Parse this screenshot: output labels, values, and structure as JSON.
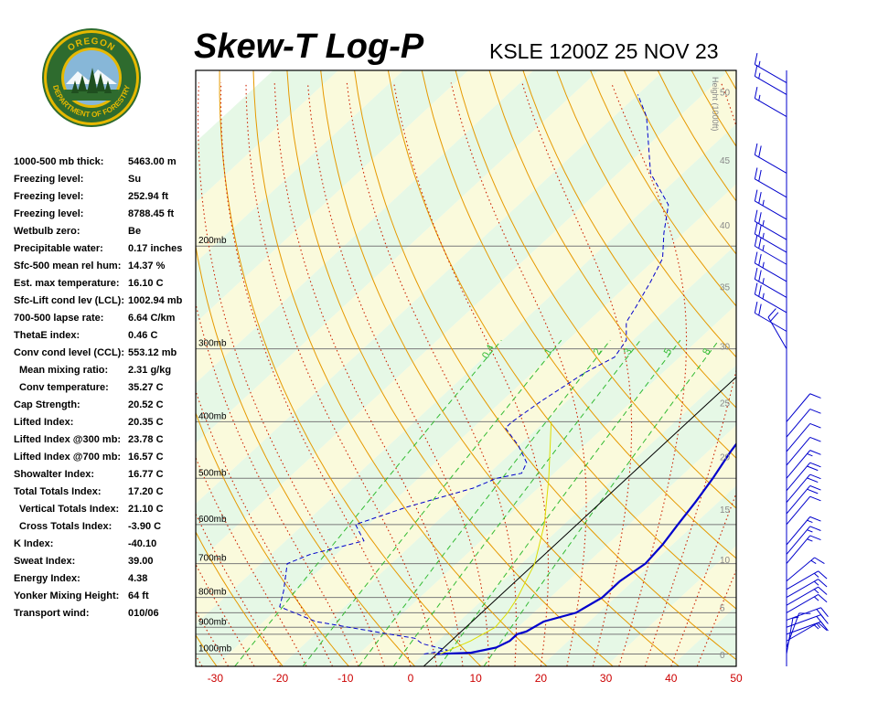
{
  "header": {
    "title": "Skew-T Log-P",
    "station": "KSLE 1200Z 25 NOV 23"
  },
  "logo": {
    "top_text": "OREGON",
    "bottom_text": "DEPARTMENT OF FORESTRY",
    "colors": {
      "ring": "#2e6b2e",
      "gold": "#e6b800",
      "sky": "#87b7d8"
    }
  },
  "stats": [
    {
      "label": "1000-500 mb thick:",
      "value": "5463.00 m"
    },
    {
      "label": "Freezing level:",
      "value": "Su"
    },
    {
      "label": "Freezing level:",
      "value": "252.94 ft"
    },
    {
      "label": "Freezing level:",
      "value": "8788.45 ft"
    },
    {
      "label": "Wetbulb zero:",
      "value": "Be"
    },
    {
      "label": "Precipitable water:",
      "value": "0.17 inches"
    },
    {
      "label": "Sfc-500 mean rel hum:",
      "value": "14.37 %"
    },
    {
      "label": "Est. max temperature:",
      "value": "16.10 C"
    },
    {
      "label": "Sfc-Lift cond lev (LCL):",
      "value": "1002.94 mb"
    },
    {
      "label": "700-500 lapse rate:",
      "value": "6.64 C/km"
    },
    {
      "label": "ThetaE index:",
      "value": "0.46 C"
    },
    {
      "label": "Conv cond level (CCL):",
      "value": "553.12 mb"
    },
    {
      "label": "Mean mixing ratio:",
      "value": "2.31 g/kg",
      "indent": true
    },
    {
      "label": "Conv temperature:",
      "value": "35.27 C",
      "indent": true
    },
    {
      "label": "Cap Strength:",
      "value": "20.52 C"
    },
    {
      "label": "Lifted Index:",
      "value": "20.35 C"
    },
    {
      "label": "Lifted Index @300 mb:",
      "value": "23.78 C"
    },
    {
      "label": "Lifted Index @700 mb:",
      "value": "16.57 C"
    },
    {
      "label": "Showalter Index:",
      "value": "16.77 C"
    },
    {
      "label": "Total Totals Index:",
      "value": "17.20 C"
    },
    {
      "label": "Vertical Totals Index:",
      "value": "21.10 C",
      "indent": true
    },
    {
      "label": "Cross Totals Index:",
      "value": "-3.90 C",
      "indent": true
    },
    {
      "label": "K Index:",
      "value": "-40.10"
    },
    {
      "label": "Sweat Index:",
      "value": "39.00"
    },
    {
      "label": "Energy Index:",
      "value": "4.38"
    },
    {
      "label": "Yonker Mixing Height:",
      "value": "64 ft"
    },
    {
      "label": "Transport wind:",
      "value": "010/06"
    }
  ],
  "chart_data": {
    "type": "line",
    "title": "Skew-T Log-P",
    "x_axis": {
      "label": "",
      "ticks": [
        -30,
        -20,
        -10,
        0,
        10,
        20,
        30,
        40,
        50
      ],
      "range": [
        -33,
        50
      ],
      "tick_color": "#cc0000"
    },
    "y_axis": {
      "scale": "log-pressure",
      "range_mb": [
        1050,
        100
      ],
      "pressure_labels": [
        "200mb",
        "300mb",
        "400mb",
        "500mb",
        "600mb",
        "700mb",
        "800mb",
        "900mb",
        "1000mb"
      ],
      "pressure_values": [
        200,
        300,
        400,
        500,
        600,
        700,
        800,
        900,
        1000
      ]
    },
    "height_axis": {
      "label": "Height (1000ft)",
      "ticks": [
        0,
        5,
        10,
        15,
        20,
        25,
        30,
        35,
        40,
        45,
        50
      ]
    },
    "mixing_ratio_labels": [
      "0.4",
      "1",
      "2",
      "3",
      "5",
      "8"
    ],
    "background_fills": {
      "light_green": "#e6f8e6",
      "light_yellow": "#fafadc"
    },
    "line_colors": {
      "dry_adiabats": "#e69900",
      "moist_adiabats": "#cc2200",
      "mixing_ratio": "#33bb33",
      "isobars": "#7a7a7a",
      "reference_line": "#000000",
      "lifted_parcel": "#dddd00"
    },
    "series": [
      {
        "role": "temperature",
        "color": "#0000cc",
        "style": "solid",
        "points": [
          [
            2,
            1000
          ],
          [
            7,
            995
          ],
          [
            10,
            975
          ],
          [
            11,
            950
          ],
          [
            11,
            925
          ],
          [
            12,
            915
          ],
          [
            13,
            880
          ],
          [
            16.5,
            850
          ],
          [
            18,
            800
          ],
          [
            18,
            750
          ],
          [
            19,
            700
          ],
          [
            18.5,
            650
          ],
          [
            17.5,
            600
          ],
          [
            16.5,
            550
          ],
          [
            15.2,
            500
          ],
          [
            13.5,
            450
          ],
          [
            12,
            400
          ],
          [
            10,
            350
          ],
          [
            6.5,
            300
          ],
          [
            2.5,
            250
          ],
          [
            0,
            220
          ],
          [
            -2,
            200
          ],
          [
            -4,
            180
          ],
          [
            -6,
            150
          ],
          [
            -10,
            120
          ],
          [
            -15,
            100
          ]
        ]
      },
      {
        "role": "dewpoint",
        "color": "#0000cc",
        "style": "dashed",
        "points": [
          [
            0,
            1000
          ],
          [
            3,
            985
          ],
          [
            -2,
            960
          ],
          [
            -4,
            940
          ],
          [
            -10,
            920
          ],
          [
            -22,
            880
          ],
          [
            -30,
            830
          ],
          [
            -32,
            780
          ],
          [
            -36,
            700
          ],
          [
            -34,
            675
          ],
          [
            -28,
            640
          ],
          [
            -32,
            600
          ],
          [
            -27,
            560
          ],
          [
            -20,
            520
          ],
          [
            -18,
            500
          ],
          [
            -15,
            490
          ],
          [
            -16,
            470
          ],
          [
            -20,
            440
          ],
          [
            -25,
            410
          ],
          [
            -25,
            400
          ],
          [
            -24,
            370
          ],
          [
            -22,
            330
          ],
          [
            -20,
            310
          ],
          [
            -21,
            290
          ],
          [
            -24,
            270
          ],
          [
            -25,
            255
          ],
          [
            -27,
            230
          ],
          [
            -29,
            210
          ],
          [
            -33,
            190
          ],
          [
            -37,
            170
          ],
          [
            -45,
            150
          ],
          [
            -55,
            120
          ],
          [
            -60,
            110
          ]
        ]
      },
      {
        "role": "lifted parcel",
        "color": "#dddd00",
        "style": "solid",
        "points": [
          [
            2.5,
            1000
          ],
          [
            5,
            950
          ],
          [
            6.5,
            900
          ],
          [
            6,
            850
          ],
          [
            5,
            800
          ],
          [
            2,
            700
          ],
          [
            -3,
            600
          ],
          [
            -10,
            500
          ],
          [
            -19,
            400
          ]
        ]
      }
    ],
    "wind_barbs": [
      {
        "pressure": 1000,
        "dir": 10,
        "speed": 5
      },
      {
        "pressure": 975,
        "dir": 20,
        "speed": 10
      },
      {
        "pressure": 950,
        "dir": 60,
        "speed": 15
      },
      {
        "pressure": 925,
        "dir": 70,
        "speed": 15
      },
      {
        "pressure": 900,
        "dir": 70,
        "speed": 20
      },
      {
        "pressure": 875,
        "dir": 70,
        "speed": 20
      },
      {
        "pressure": 850,
        "dir": 60,
        "speed": 15
      },
      {
        "pressure": 825,
        "dir": 60,
        "speed": 15
      },
      {
        "pressure": 800,
        "dir": 60,
        "speed": 15
      },
      {
        "pressure": 775,
        "dir": 60,
        "speed": 15
      },
      {
        "pressure": 750,
        "dir": 50,
        "speed": 15
      },
      {
        "pressure": 700,
        "dir": 40,
        "speed": 15
      },
      {
        "pressure": 675,
        "dir": 40,
        "speed": 15
      },
      {
        "pressure": 650,
        "dir": 40,
        "speed": 15
      },
      {
        "pressure": 600,
        "dir": 40,
        "speed": 10
      },
      {
        "pressure": 575,
        "dir": 40,
        "speed": 20
      },
      {
        "pressure": 550,
        "dir": 40,
        "speed": 20
      },
      {
        "pressure": 525,
        "dir": 40,
        "speed": 20
      },
      {
        "pressure": 500,
        "dir": 40,
        "speed": 15
      },
      {
        "pressure": 475,
        "dir": 40,
        "speed": 10
      },
      {
        "pressure": 450,
        "dir": 40,
        "speed": 10
      },
      {
        "pressure": 425,
        "dir": 40,
        "speed": 10
      },
      {
        "pressure": 400,
        "dir": 40,
        "speed": 10
      },
      {
        "pressure": 300,
        "dir": 330,
        "speed": 20
      },
      {
        "pressure": 280,
        "dir": 300,
        "speed": 20
      },
      {
        "pressure": 260,
        "dir": 300,
        "speed": 25
      },
      {
        "pressure": 245,
        "dir": 300,
        "speed": 25
      },
      {
        "pressure": 230,
        "dir": 300,
        "speed": 25
      },
      {
        "pressure": 215,
        "dir": 300,
        "speed": 25
      },
      {
        "pressure": 205,
        "dir": 300,
        "speed": 25
      },
      {
        "pressure": 195,
        "dir": 300,
        "speed": 25
      },
      {
        "pressure": 180,
        "dir": 300,
        "speed": 25
      },
      {
        "pressure": 165,
        "dir": 300,
        "speed": 20
      },
      {
        "pressure": 150,
        "dir": 300,
        "speed": 20
      },
      {
        "pressure": 120,
        "dir": 300,
        "speed": 15
      },
      {
        "pressure": 110,
        "dir": 300,
        "speed": 15
      },
      {
        "pressure": 105,
        "dir": 300,
        "speed": 15
      }
    ]
  }
}
